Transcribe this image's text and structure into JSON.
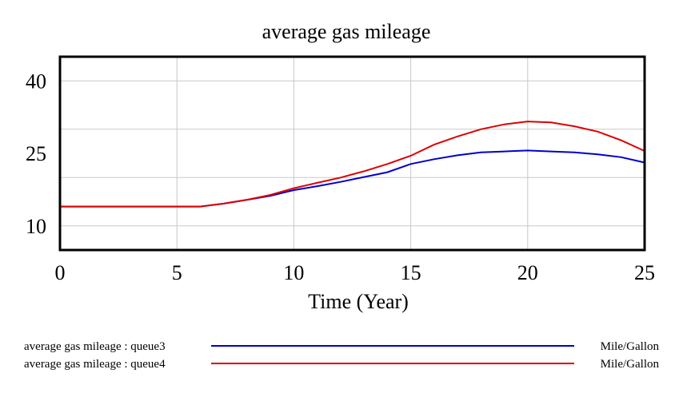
{
  "chart_data": {
    "type": "line",
    "title": "average gas mileage",
    "xlabel": "Time (Year)",
    "ylabel": "",
    "xlim": [
      0,
      25
    ],
    "ylim": [
      5,
      45
    ],
    "x_ticks": [
      "0",
      "5",
      "10",
      "15",
      "20",
      "25"
    ],
    "y_ticks": [
      "10",
      "25",
      "40"
    ],
    "grid": true,
    "legend_position": "bottom",
    "series": [
      {
        "name": "average gas mileage : queue3",
        "unit": "Mile/Gallon",
        "color": "#0000cc",
        "x": [
          0,
          6,
          7,
          8,
          9,
          10,
          11,
          12,
          13,
          14,
          15,
          16,
          17,
          18,
          19,
          20,
          21,
          22,
          23,
          24,
          25
        ],
        "y": [
          14,
          14,
          14.6,
          15.4,
          16.2,
          17.4,
          18.2,
          19.1,
          20.1,
          21.1,
          22.8,
          23.8,
          24.6,
          25.2,
          25.4,
          25.6,
          25.4,
          25.2,
          24.8,
          24.2,
          23.1
        ]
      },
      {
        "name": "average gas mileage : queue4",
        "unit": "Mile/Gallon",
        "color": "#dd0000",
        "x": [
          0,
          6,
          7,
          8,
          9,
          10,
          11,
          12,
          13,
          14,
          15,
          16,
          17,
          18,
          19,
          20,
          21,
          22,
          23,
          24,
          25
        ],
        "y": [
          14,
          14,
          14.6,
          15.4,
          16.4,
          17.8,
          18.9,
          20.0,
          21.3,
          22.8,
          24.5,
          26.8,
          28.5,
          30.0,
          31.0,
          31.6,
          31.4,
          30.6,
          29.5,
          27.7,
          25.5
        ]
      }
    ]
  }
}
